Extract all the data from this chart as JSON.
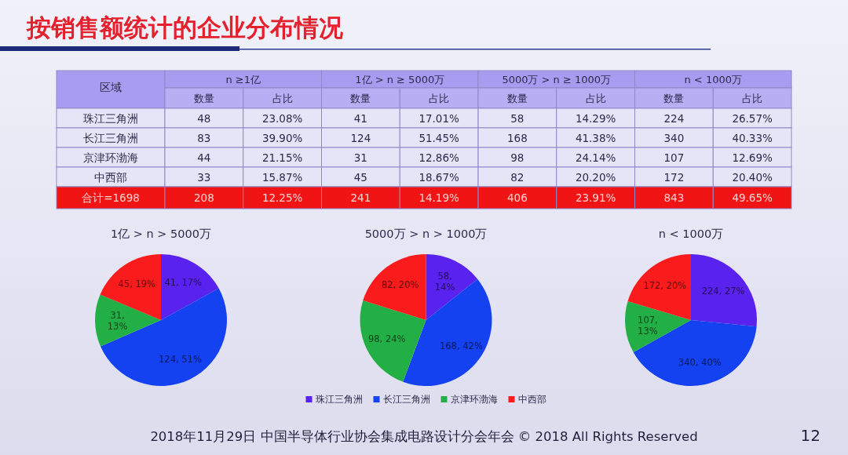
{
  "chart_data": [
    {
      "type": "other",
      "title": "按销售额统计的企业分布情况",
      "annotations": [
        "2018年11月29日 中国半导体行业协会集成电路设计分会年会 © 2018 All Rights Reserved",
        "12"
      ]
    },
    {
      "type": "heatmap",
      "ylabel": "区域",
      "annotations": [
        "n ≥1亿",
        "1亿 > n ≥ 5000万",
        "5000万 > n ≥ 1000万",
        "n < 1000万"
      ],
      "categories": [
        "数量",
        "占比",
        "数量",
        "占比",
        "数量",
        "占比",
        "数量",
        "占比"
      ],
      "y_categories": [
        "珠江三角洲",
        "长江三角洲",
        "京津环渤海",
        "中西部",
        "合计=1698"
      ],
      "cells": [
        [
          48,
          23.08,
          41,
          17.01,
          58,
          14.29,
          224,
          26.57
        ],
        [
          83,
          39.9,
          124,
          51.45,
          168,
          41.38,
          340,
          40.33
        ],
        [
          44,
          21.15,
          31,
          12.86,
          98,
          24.14,
          107,
          12.69
        ],
        [
          33,
          15.87,
          45,
          18.67,
          82,
          20.2,
          172,
          20.4
        ],
        [
          208,
          12.25,
          241,
          14.19,
          406,
          23.91,
          843,
          49.65
        ]
      ],
      "cell_labels": [
        [
          "48",
          "23.08%",
          "41",
          "17.01%",
          "58",
          "14.29%",
          "224",
          "26.57%"
        ],
        [
          "83",
          "39.90%",
          "124",
          "51.45%",
          "168",
          "41.38%",
          "340",
          "40.33%"
        ],
        [
          "44",
          "21.15%",
          "31",
          "12.86%",
          "98",
          "24.14%",
          "107",
          "12.69%"
        ],
        [
          "33",
          "15.87%",
          "45",
          "18.67%",
          "82",
          "20.20%",
          "172",
          "20.40%"
        ],
        [
          "208",
          "12.25%",
          "241",
          "14.19%",
          "406",
          "23.91%",
          "843",
          "49.65%"
        ]
      ]
    },
    {
      "type": "pie",
      "title": "1亿 > n > 5000万",
      "values": [
        41,
        124,
        31,
        45
      ],
      "colors": [
        "#5a22ee",
        "#1442f0",
        "#22b046",
        "#fa1c1c"
      ],
      "value_labels": [
        "41, 17%",
        "124, 51%",
        "31, 13%",
        "45, 19%"
      ]
    },
    {
      "type": "pie",
      "title": "5000万 > n > 1000万",
      "categories": [
        "珠江三角洲",
        "长江三角洲",
        "京津环渤海",
        "中西部"
      ],
      "values": [
        58,
        168,
        98,
        82
      ],
      "colors": [
        "#5a22ee",
        "#1442f0",
        "#22b046",
        "#fa1c1c"
      ],
      "value_labels": [
        "58, 14%",
        "168, 42%",
        "98, 24%",
        "82, 20%"
      ],
      "legend": "bottom"
    },
    {
      "type": "pie",
      "title": "n < 1000万",
      "values": [
        224,
        340,
        107,
        172
      ],
      "colors": [
        "#5a22ee",
        "#1442f0",
        "#22b046",
        "#fa1c1c"
      ],
      "value_labels": [
        "224, 27%",
        "340, 40%",
        "107, 13%",
        "172, 20%"
      ]
    }
  ]
}
